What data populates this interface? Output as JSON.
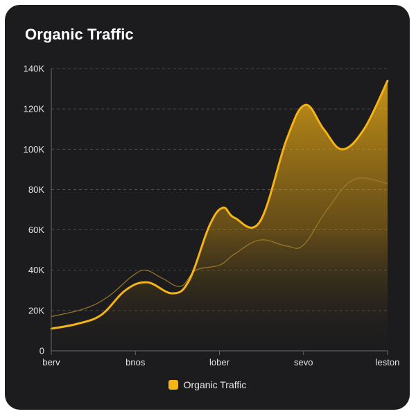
{
  "chart_data": {
    "type": "area",
    "title": "Organic Traffic",
    "categories": [
      "berv",
      "bnos",
      "lober",
      "sevo",
      "leston"
    ],
    "x_positions": [
      0,
      0.25,
      0.5,
      0.75,
      1.0
    ],
    "ylim": [
      0,
      140000
    ],
    "yticks": [
      0,
      20000,
      40000,
      60000,
      80000,
      100000,
      120000,
      140000
    ],
    "ytick_labels": [
      "0",
      "20K",
      "40K",
      "60K",
      "80K",
      "100K",
      "120K",
      "140K"
    ],
    "grid": true,
    "legend_position": "bottom",
    "series": [
      {
        "name": "Organic Traffic",
        "color": "#f5b316",
        "points": [
          [
            0.0,
            11000
          ],
          [
            0.08,
            13500
          ],
          [
            0.15,
            18000
          ],
          [
            0.22,
            30000
          ],
          [
            0.285,
            34000
          ],
          [
            0.36,
            28500
          ],
          [
            0.41,
            35000
          ],
          [
            0.47,
            62000
          ],
          [
            0.51,
            71000
          ],
          [
            0.545,
            66000
          ],
          [
            0.62,
            64000
          ],
          [
            0.7,
            105000
          ],
          [
            0.755,
            122000
          ],
          [
            0.81,
            110000
          ],
          [
            0.865,
            100000
          ],
          [
            0.93,
            110000
          ],
          [
            1.0,
            134000
          ]
        ]
      },
      {
        "name": "",
        "color": "#a5802a",
        "points": [
          [
            0.0,
            17000
          ],
          [
            0.1,
            21000
          ],
          [
            0.17,
            27000
          ],
          [
            0.24,
            37000
          ],
          [
            0.28,
            40000
          ],
          [
            0.33,
            36000
          ],
          [
            0.385,
            32000
          ],
          [
            0.43,
            40000
          ],
          [
            0.5,
            42500
          ],
          [
            0.545,
            48000
          ],
          [
            0.62,
            55000
          ],
          [
            0.7,
            52000
          ],
          [
            0.75,
            52500
          ],
          [
            0.82,
            70000
          ],
          [
            0.9,
            85000
          ],
          [
            1.0,
            83000
          ]
        ]
      }
    ]
  },
  "legend": {
    "label": "Organic Traffic"
  }
}
